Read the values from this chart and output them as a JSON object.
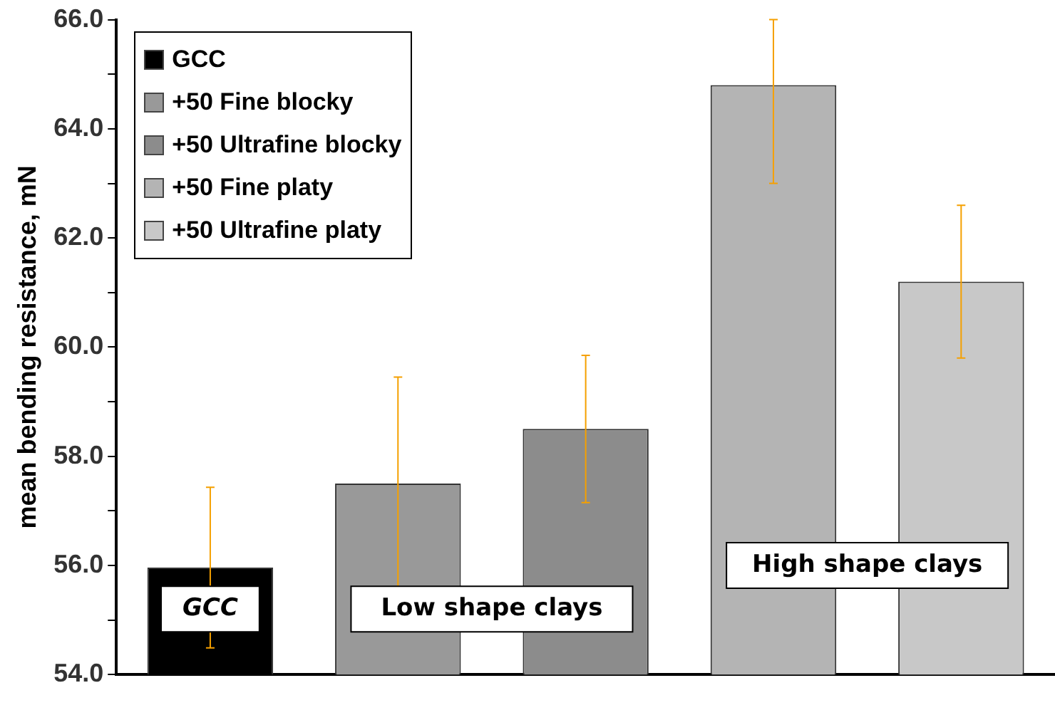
{
  "chart_data": {
    "type": "bar",
    "ylabel": "mean bending resistance, mN",
    "categories": [
      null,
      null,
      null,
      null,
      null
    ],
    "series": [
      {
        "name": "GCC",
        "color": "#000000",
        "values": [
          55.96,
          null,
          null,
          null,
          null
        ],
        "errors": [
          1.47,
          null,
          null,
          null,
          null
        ]
      },
      {
        "name": "+50 Fine blocky",
        "color": "#999999",
        "values": [
          null,
          57.5,
          null,
          null,
          null
        ],
        "errors": [
          null,
          1.95,
          null,
          null,
          null
        ]
      },
      {
        "name": "+50 Ultrafine blocky",
        "color": "#8c8c8c",
        "values": [
          null,
          null,
          58.5,
          null,
          null
        ],
        "errors": [
          null,
          null,
          1.35,
          null,
          null
        ]
      },
      {
        "name": "+50 Fine platy",
        "color": "#b4b4b4",
        "values": [
          null,
          null,
          null,
          64.8,
          null
        ],
        "errors": [
          null,
          null,
          null,
          [
            63.0,
            66.0
          ],
          null
        ]
      },
      {
        "name": "+50 Ultrafine platy",
        "color": "#c8c8c8",
        "values": [
          null,
          null,
          null,
          null,
          61.2
        ],
        "errors": [
          null,
          null,
          null,
          null,
          1.4
        ]
      }
    ],
    "ylim": [
      54,
      66
    ],
    "yticks": [
      {
        "value": 54,
        "label": "54.0"
      },
      {
        "value": 55,
        "label": null
      },
      {
        "value": 56,
        "label": "56.0"
      },
      {
        "value": 57,
        "label": null
      },
      {
        "value": 58,
        "label": "58.0"
      },
      {
        "value": 59,
        "label": null
      },
      {
        "value": 60,
        "label": "60.0"
      },
      {
        "value": 61,
        "label": null
      },
      {
        "value": 62,
        "label": "62.0"
      },
      {
        "value": 63,
        "label": null
      },
      {
        "value": 64,
        "label": "64.0"
      },
      {
        "value": 65,
        "label": null
      },
      {
        "value": 66,
        "label": "66.0"
      }
    ],
    "annotations": [
      "GCC",
      "Low shape clays",
      "High shape clays"
    ],
    "grid": false,
    "legend": "top left"
  }
}
